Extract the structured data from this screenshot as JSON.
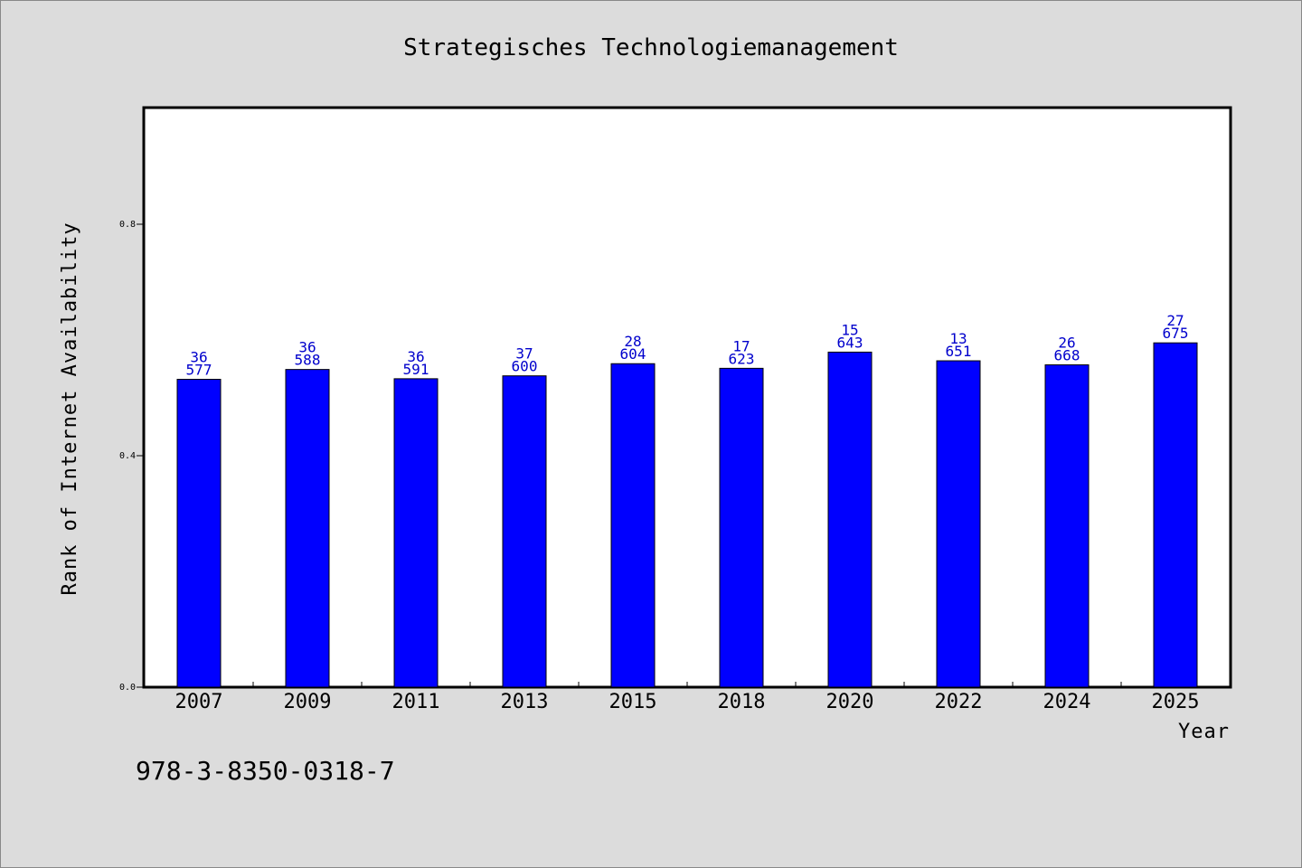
{
  "chart_data": {
    "type": "bar",
    "title": "Strategisches Technologiemanagement",
    "xlabel": "Year",
    "ylabel": "Rank of Internet Availability",
    "categories": [
      "2007",
      "2009",
      "2011",
      "2013",
      "2015",
      "2018",
      "2020",
      "2022",
      "2024",
      "2025"
    ],
    "values": [
      0.532,
      0.549,
      0.533,
      0.538,
      0.559,
      0.551,
      0.579,
      0.564,
      0.557,
      0.595
    ],
    "labels_top": [
      "36",
      "36",
      "36",
      "37",
      "28",
      "17",
      "15",
      "13",
      "26",
      "27"
    ],
    "labels_bottom": [
      "577",
      "588",
      "591",
      "600",
      "604",
      "623",
      "643",
      "651",
      "668",
      "675"
    ],
    "ylim": [
      0,
      1.0
    ],
    "yticks": [
      "0.0",
      "0.4",
      "0.8"
    ],
    "bar_color": "#0000ff",
    "label_color": "#0000cc",
    "background_color": "#dcdcdc",
    "plot_background": "#ffffff",
    "grid": false
  },
  "footer": {
    "isbn": "978-3-8350-0318-7"
  }
}
